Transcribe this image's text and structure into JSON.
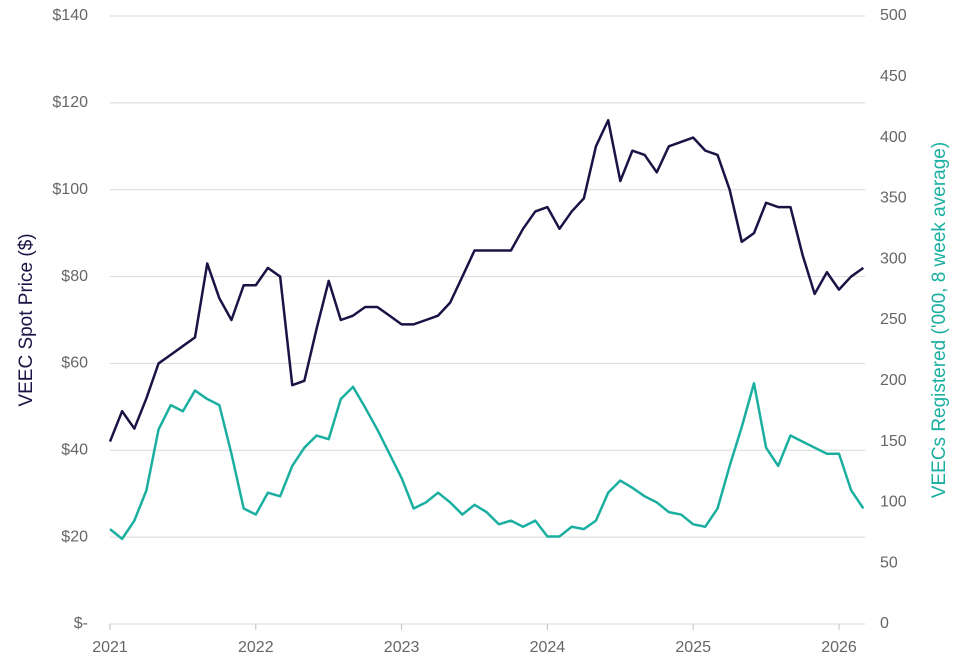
{
  "chart_data": {
    "type": "line",
    "y_label": "VEEC Spot Price ($)",
    "y2_label": "VEECs Registered ('000, 8 week average)",
    "x": [
      2021,
      2021.083,
      2021.167,
      2021.25,
      2021.333,
      2021.417,
      2021.5,
      2021.583,
      2021.667,
      2021.75,
      2021.833,
      2021.917,
      2022,
      2022.083,
      2022.167,
      2022.25,
      2022.333,
      2022.417,
      2022.5,
      2022.583,
      2022.667,
      2022.75,
      2022.833,
      2022.917,
      2023,
      2023.083,
      2023.167,
      2023.25,
      2023.333,
      2023.417,
      2023.5,
      2023.583,
      2023.667,
      2023.75,
      2023.833,
      2023.917,
      2024,
      2024.083,
      2024.167,
      2024.25,
      2024.333,
      2024.417,
      2024.5,
      2024.583,
      2024.667,
      2024.75,
      2024.833,
      2024.917,
      2025,
      2025.083,
      2025.167,
      2025.25,
      2025.333,
      2025.417,
      2025.5,
      2025.583,
      2025.667,
      2025.75,
      2025.833,
      2025.917,
      2026,
      2026.083,
      2026.167
    ],
    "series": [
      {
        "name": "VEEC Spot Price",
        "color": "#1a1446",
        "axis": "y",
        "values": [
          42,
          49,
          45,
          52,
          60,
          62,
          64,
          66,
          83,
          75,
          70,
          78,
          78,
          82,
          80,
          55,
          56,
          68,
          79,
          70,
          71,
          73,
          73,
          71,
          69,
          69,
          70,
          71,
          74,
          80,
          86,
          86,
          86,
          86,
          91,
          95,
          96,
          91,
          95,
          98,
          110,
          116,
          102,
          109,
          108,
          104,
          110,
          111,
          112,
          109,
          108,
          100,
          88,
          90,
          97,
          96,
          96,
          85,
          76,
          81,
          77,
          80,
          82
        ]
      },
      {
        "name": "VEECs Registered",
        "color": "#1aafa0",
        "axis": "y2",
        "values": [
          78,
          70,
          85,
          110,
          160,
          180,
          175,
          192,
          185,
          180,
          140,
          95,
          90,
          108,
          105,
          130,
          145,
          155,
          152,
          185,
          195,
          178,
          160,
          140,
          120,
          95,
          100,
          108,
          100,
          90,
          98,
          92,
          82,
          85,
          80,
          85,
          72,
          72,
          80,
          78,
          85,
          108,
          118,
          112,
          105,
          100,
          92,
          90,
          82,
          80,
          95,
          130,
          162,
          198,
          145,
          130,
          155,
          150,
          145,
          140,
          140,
          110,
          95
        ]
      }
    ],
    "xlim": [
      2021,
      2026.18
    ],
    "xticks": [
      2021,
      2022,
      2023,
      2024,
      2025,
      2026
    ],
    "ylim": [
      0,
      140
    ],
    "yticks": [
      {
        "value": 0,
        "label": "$-"
      },
      {
        "value": 20,
        "label": "$20"
      },
      {
        "value": 40,
        "label": "$40"
      },
      {
        "value": 60,
        "label": "$60"
      },
      {
        "value": 80,
        "label": "$80"
      },
      {
        "value": 100,
        "label": "$100"
      },
      {
        "value": 120,
        "label": "$120"
      },
      {
        "value": 140,
        "label": "$140"
      }
    ],
    "y2lim": [
      0,
      500
    ],
    "y2ticks": [
      0,
      50,
      100,
      150,
      200,
      250,
      300,
      350,
      400,
      450,
      500
    ],
    "grid": true
  }
}
